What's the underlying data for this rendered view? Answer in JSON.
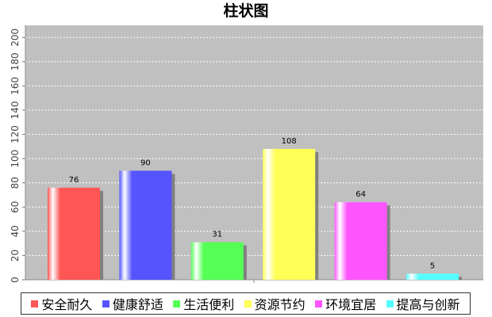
{
  "chart_data": {
    "type": "bar",
    "title": "柱状图",
    "categories": [
      "安全耐久",
      "健康舒适",
      "生活便利",
      "资源节约",
      "环境宜居",
      "提高与创新"
    ],
    "values": [
      76,
      90,
      31,
      108,
      64,
      5
    ],
    "colors": [
      "#ff5555",
      "#5555ff",
      "#55ff55",
      "#ffff55",
      "#ff55ff",
      "#55ffff"
    ],
    "ylim": [
      0,
      210
    ],
    "yticks": [
      0,
      20,
      40,
      60,
      80,
      100,
      120,
      140,
      160,
      180,
      200
    ],
    "grid": true,
    "plot_background": "#c0c0c0",
    "legend": {
      "placement": "bottom"
    }
  }
}
